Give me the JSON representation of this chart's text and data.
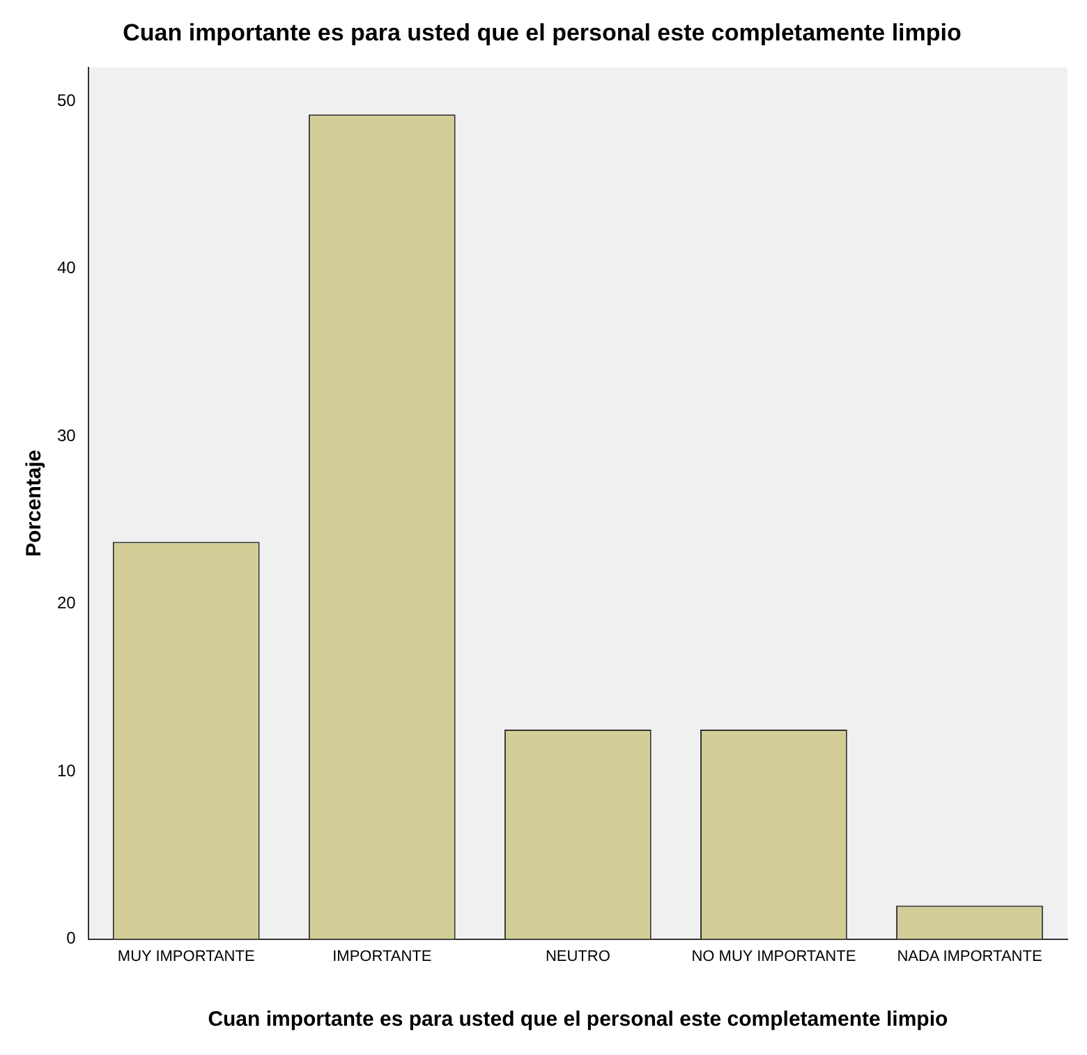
{
  "chart_data": {
    "type": "bar",
    "title": "Cuan importante es para usted que el personal este completamente limpio",
    "xlabel": "Cuan importante es para usted que el personal este completamente limpio",
    "ylabel": "Porcentaje",
    "categories": [
      "MUY IMPORTANTE",
      "IMPORTANTE",
      "NEUTRO",
      "NO MUY IMPORTANTE",
      "NADA IMPORTANTE"
    ],
    "values": [
      23.7,
      49.2,
      12.5,
      12.5,
      2.0
    ],
    "color": "#d3ce97",
    "ylim": [
      0,
      52
    ],
    "yticks": [
      0,
      10,
      20,
      30,
      40,
      50
    ],
    "grid": false,
    "legend": false
  }
}
